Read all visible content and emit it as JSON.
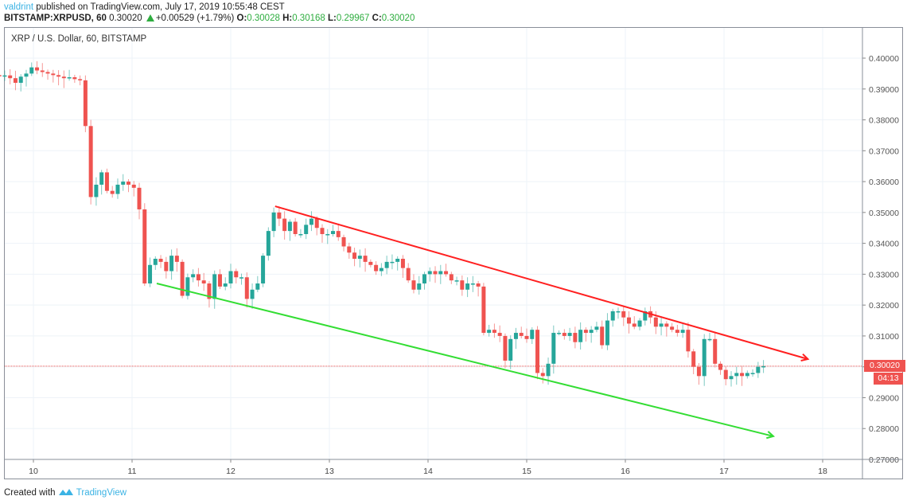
{
  "header": {
    "publisher": "valdrint",
    "published_text": " published on TradingView.com, July 17, 2019 10:55:48 CEST",
    "symbol": "BITSTAMP:XRPUSD, 60",
    "last": "0.30020",
    "change": "+0.00529 (+1.79%)",
    "o_label": "O:",
    "o": "0.30028",
    "h_label": "H:",
    "h": "0.30168",
    "l_label": "L:",
    "l": "0.29967",
    "c_label": "C:",
    "c": "0.30020"
  },
  "chart_title": "XRP / U.S. Dollar, 60, BITSTAMP",
  "price_tag": "0.30020",
  "countdown": "04:13",
  "footer": {
    "created_with": "Created with ",
    "brand": "TradingView"
  },
  "colors": {
    "up": "#26a69a",
    "down": "#ef5350",
    "resistance": "#ff2020",
    "support": "#33dd33",
    "grid": "#eef3f8"
  },
  "chart_data": {
    "type": "candlestick",
    "title": "XRP / U.S. Dollar, 60, BITSTAMP",
    "xlabel": "",
    "ylabel": "",
    "ylim": [
      0.265,
      0.409
    ],
    "y_ticks": [
      "0.40000",
      "0.39000",
      "0.38000",
      "0.37000",
      "0.36000",
      "0.35000",
      "0.34000",
      "0.33000",
      "0.32000",
      "0.31000",
      "0.30000",
      "0.29000",
      "0.28000",
      "0.27000"
    ],
    "x_ticks": [
      "10",
      "11",
      "12",
      "13",
      "14",
      "15",
      "16",
      "17",
      "18"
    ],
    "grid": true,
    "current_price": 0.3002,
    "closes_approx": [
      0.3945,
      0.3942,
      0.3944,
      0.3935,
      0.392,
      0.394,
      0.395,
      0.397,
      0.396,
      0.3955,
      0.395,
      0.3945,
      0.394,
      0.3935,
      0.3938,
      0.3932,
      0.3928,
      0.378,
      0.355,
      0.359,
      0.363,
      0.357,
      0.356,
      0.359,
      0.36,
      0.359,
      0.358,
      0.351,
      0.327,
      0.333,
      0.335,
      0.334,
      0.331,
      0.336,
      0.334,
      0.323,
      0.329,
      0.33,
      0.328,
      0.327,
      0.322,
      0.33,
      0.326,
      0.327,
      0.331,
      0.329,
      0.329,
      0.322,
      0.325,
      0.327,
      0.336,
      0.344,
      0.35,
      0.348,
      0.344,
      0.347,
      0.343,
      0.343,
      0.346,
      0.348,
      0.345,
      0.343,
      0.343,
      0.344,
      0.342,
      0.339,
      0.337,
      0.335,
      0.336,
      0.334,
      0.333,
      0.331,
      0.332,
      0.334,
      0.334,
      0.335,
      0.332,
      0.328,
      0.325,
      0.327,
      0.33,
      0.331,
      0.33,
      0.331,
      0.33,
      0.328,
      0.328,
      0.325,
      0.327,
      0.327,
      0.326,
      0.311,
      0.312,
      0.311,
      0.31,
      0.302,
      0.309,
      0.311,
      0.31,
      0.309,
      0.312,
      0.298,
      0.297,
      0.301,
      0.311,
      0.311,
      0.31,
      0.311,
      0.308,
      0.312,
      0.311,
      0.312,
      0.313,
      0.307,
      0.315,
      0.318,
      0.318,
      0.316,
      0.314,
      0.313,
      0.315,
      0.318,
      0.316,
      0.313,
      0.314,
      0.313,
      0.312,
      0.311,
      0.312,
      0.305,
      0.3,
      0.297,
      0.309,
      0.309,
      0.301,
      0.299,
      0.296,
      0.297,
      0.298,
      0.297,
      0.298,
      0.298,
      0.3,
      0.3002
    ],
    "trendlines": [
      {
        "name": "resistance",
        "from": [
          12.45,
          0.352
        ],
        "to": [
          17.85,
          0.3025
        ],
        "arrow": true
      },
      {
        "name": "support",
        "from": [
          11.25,
          0.327
        ],
        "to": [
          17.5,
          0.2775
        ],
        "arrow": true
      }
    ]
  }
}
